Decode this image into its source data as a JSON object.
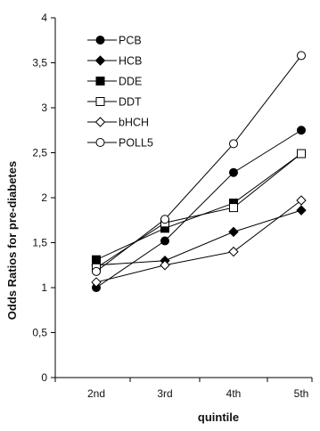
{
  "chart_data": {
    "type": "line",
    "title": "",
    "xlabel": "quintile",
    "ylabel": "Odds Ratios for pre-diabetes",
    "categories": [
      "2nd",
      "3rd",
      "4th",
      "5th"
    ],
    "ylim": [
      0,
      4
    ],
    "yticks": [
      "0",
      "0,5",
      "1",
      "1,5",
      "2",
      "2,5",
      "3",
      "3,5",
      "4"
    ],
    "ytick_values": [
      0,
      0.5,
      1,
      1.5,
      2,
      2.5,
      3,
      3.5,
      4
    ],
    "grid": false,
    "legend_position": "top-left",
    "series": [
      {
        "name": "PCB",
        "marker": "circle-filled",
        "values": [
          1.0,
          1.52,
          2.28,
          2.75
        ]
      },
      {
        "name": "HCB",
        "marker": "diamond-filled",
        "values": [
          1.25,
          1.3,
          1.62,
          1.86
        ]
      },
      {
        "name": "DDE",
        "marker": "square-filled",
        "values": [
          1.31,
          1.66,
          1.94,
          2.49
        ]
      },
      {
        "name": "DDT",
        "marker": "square-open",
        "values": [
          1.22,
          1.72,
          1.89,
          2.49
        ]
      },
      {
        "name": "bHCH",
        "marker": "diamond-open",
        "values": [
          1.06,
          1.25,
          1.4,
          1.97
        ]
      },
      {
        "name": "POLL5",
        "marker": "circle-open",
        "values": [
          1.18,
          1.76,
          2.6,
          3.58
        ]
      }
    ]
  }
}
